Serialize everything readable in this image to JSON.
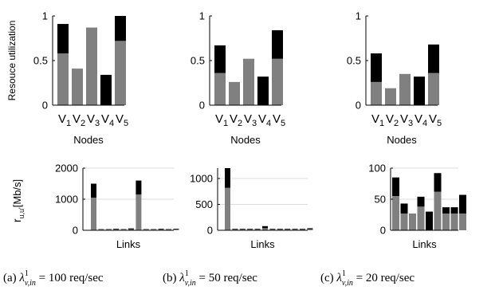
{
  "colors": {
    "gray": "#808080",
    "black": "#000000",
    "grid": "#dcdcdc"
  },
  "chart_data": [
    {
      "id": "a-top",
      "type": "bar",
      "stacked": true,
      "categories": [
        "V1",
        "V2",
        "V3",
        "V4",
        "V5"
      ],
      "series": [
        {
          "values": [
            0.58,
            0.41,
            0.87,
            0.0,
            0.72
          ],
          "color": "gray"
        },
        {
          "values": [
            0.33,
            0.0,
            0.0,
            0.34,
            0.28
          ],
          "color": "black"
        }
      ],
      "xlabel": "Nodes",
      "ylabel": "Resouce utilization",
      "ylim": [
        0,
        1
      ],
      "yticks": [
        "0",
        "0.5",
        "1"
      ],
      "grid": false
    },
    {
      "id": "b-top",
      "type": "bar",
      "stacked": true,
      "categories": [
        "V1",
        "V2",
        "V3",
        "V4",
        "V5"
      ],
      "series": [
        {
          "values": [
            0.36,
            0.26,
            0.52,
            0.0,
            0.52
          ],
          "color": "gray"
        },
        {
          "values": [
            0.31,
            0.0,
            0.0,
            0.32,
            0.32
          ],
          "color": "black"
        }
      ],
      "xlabel": "Nodes",
      "ylabel": "",
      "ylim": [
        0,
        1
      ],
      "yticks": [
        "0",
        "0.5",
        "1"
      ],
      "grid": false
    },
    {
      "id": "c-top",
      "type": "bar",
      "stacked": true,
      "categories": [
        "V1",
        "V2",
        "V3",
        "V4",
        "V5"
      ],
      "series": [
        {
          "values": [
            0.26,
            0.19,
            0.35,
            0.0,
            0.36
          ],
          "color": "gray"
        },
        {
          "values": [
            0.32,
            0.0,
            0.0,
            0.32,
            0.32
          ],
          "color": "black"
        }
      ],
      "xlabel": "Nodes",
      "ylabel": "",
      "ylim": [
        0,
        1
      ],
      "yticks": [
        "0",
        "0.5",
        "1"
      ],
      "grid": false
    },
    {
      "id": "a-bottom",
      "type": "bar",
      "stacked": true,
      "categories": [
        "",
        "",
        "",
        "",
        "",
        "",
        "",
        "",
        "",
        "",
        "",
        ""
      ],
      "series": [
        {
          "values": [
            1050,
            30,
            30,
            30,
            30,
            30,
            1150,
            30,
            30,
            30,
            30,
            30
          ],
          "color": "gray"
        },
        {
          "values": [
            450,
            10,
            10,
            20,
            10,
            30,
            450,
            10,
            10,
            20,
            10,
            20
          ],
          "color": "black"
        }
      ],
      "xlabel": "Links",
      "ylabel": "r",
      "ylabel_sub": "u,u'",
      "ylabel_unit": "[Mb/s]",
      "ylim": [
        0,
        2000
      ],
      "yticks": [
        "0",
        "1000",
        "2000"
      ],
      "grid": true
    },
    {
      "id": "b-bottom",
      "type": "bar",
      "stacked": true,
      "categories": [
        "",
        "",
        "",
        "",
        "",
        "",
        "",
        "",
        "",
        "",
        "",
        ""
      ],
      "series": [
        {
          "values": [
            820,
            20,
            20,
            20,
            20,
            40,
            20,
            20,
            20,
            20,
            20,
            20
          ],
          "color": "gray"
        },
        {
          "values": [
            380,
            10,
            10,
            10,
            10,
            40,
            10,
            10,
            10,
            10,
            10,
            20
          ],
          "color": "black"
        }
      ],
      "xlabel": "Links",
      "ylabel": "",
      "ylim": [
        0,
        1200
      ],
      "yticks": [
        "0",
        "500",
        "1000"
      ],
      "grid": true
    },
    {
      "id": "c-bottom",
      "type": "bar",
      "stacked": true,
      "categories": [
        "",
        "",
        "",
        "",
        "",
        "",
        "",
        "",
        "",
        "",
        ""
      ],
      "series": [
        {
          "values": [
            55,
            27,
            27,
            38,
            0,
            62,
            27,
            27,
            27,
            0,
            0
          ],
          "color": "gray"
        },
        {
          "values": [
            30,
            16,
            0,
            16,
            30,
            30,
            10,
            10,
            30,
            0,
            0
          ],
          "color": "black"
        }
      ],
      "xlabel": "Links",
      "ylabel": "",
      "ylim": [
        0,
        100
      ],
      "yticks": [
        "0",
        "50",
        "100"
      ],
      "grid": true
    }
  ],
  "captions": [
    {
      "prefix": "(a)",
      "rest": "= 100 req/sec"
    },
    {
      "prefix": "(b)",
      "rest": "= 50 req/sec"
    },
    {
      "prefix": "(c)",
      "rest": "= 20 req/sec"
    }
  ],
  "lambda_symbol": {
    "base": "λ",
    "sup": "1",
    "sub": "v,in"
  }
}
